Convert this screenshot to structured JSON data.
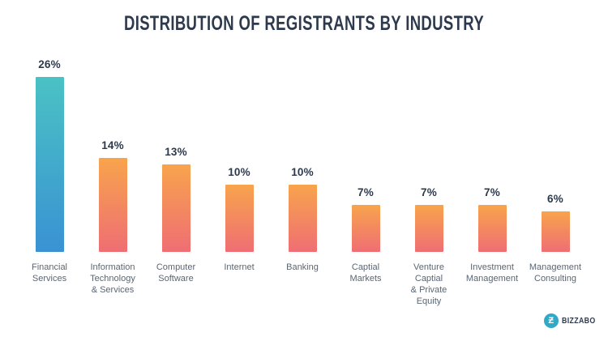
{
  "title": "DISTRIBUTION OF REGISTRANTS BY INDUSTRY",
  "logo": {
    "brand": "BIZZABO",
    "icon_letter": "Ƶ"
  },
  "colors": {
    "background": "#ffffff",
    "title_text": "#2d3a4d",
    "value_label_text": "#2d3a4d",
    "category_label_text": "#5a6673",
    "highlight_bar_top": "#4ac2c4",
    "highlight_bar_bottom": "#3a92d3",
    "bar_top": "#f8a44c",
    "bar_bottom": "#ef6e73",
    "logo_circle": "#2fa9c6"
  },
  "chart_data": {
    "type": "bar",
    "title": "DISTRIBUTION OF REGISTRANTS BY INDUSTRY",
    "categories": [
      "Financial\nServices",
      "Information\nTechnology\n& Services",
      "Computer\nSoftware",
      "Internet",
      "Banking",
      "Captial\nMarkets",
      "Venture\nCaptial\n& Private\nEquity",
      "Investment\nManagement",
      "Management\nConsulting"
    ],
    "values": [
      26,
      14,
      13,
      10,
      10,
      7,
      7,
      7,
      6
    ],
    "value_labels": [
      "26%",
      "14%",
      "13%",
      "10%",
      "10%",
      "7%",
      "7%",
      "7%",
      "6%"
    ],
    "unit": "%",
    "xlabel": "",
    "ylabel": "",
    "ylim": [
      0,
      28
    ],
    "axes_visible": false,
    "grid": false,
    "legend": "none",
    "data_labels": "above bars",
    "highlight_index": 0
  }
}
